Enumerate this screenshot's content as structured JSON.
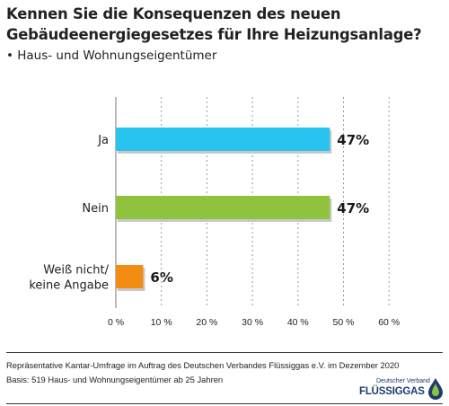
{
  "title": "Kennen Sie die Konsequenzen des neuen Gebäudeenergiegesetzes für Ihre Heizungsanlage?",
  "subtitle": "• Haus- und Wohnungseigentümer",
  "chart_data": {
    "type": "bar",
    "orientation": "horizontal",
    "categories": [
      "Ja",
      "Nein",
      "Weiß nicht/\nkeine Angabe"
    ],
    "values": [
      47,
      47,
      6
    ],
    "value_labels": [
      "47%",
      "47%",
      "6%"
    ],
    "colors": [
      "#29c3f0",
      "#8fc33e",
      "#f28c13"
    ],
    "xlim": [
      0,
      60
    ],
    "ticks": [
      0,
      10,
      20,
      30,
      40,
      50,
      60
    ],
    "tick_labels": [
      "0 %",
      "10 %",
      "20 %",
      "30 %",
      "40 %",
      "50 %",
      "60 %"
    ],
    "grid": "vertical dotted"
  },
  "footer": {
    "line1": "Repräsentative Kantar-Umfrage im Auftrag des Deutschen Verbandes Flüssiggas e.V. im Dezember 2020",
    "line2": "Basis: 519 Haus- und Wohnungseigentümer ab 25 Jahren"
  },
  "logo": {
    "line1": "Deutscher Verband",
    "line2": "FLÜSSIGGAS"
  }
}
